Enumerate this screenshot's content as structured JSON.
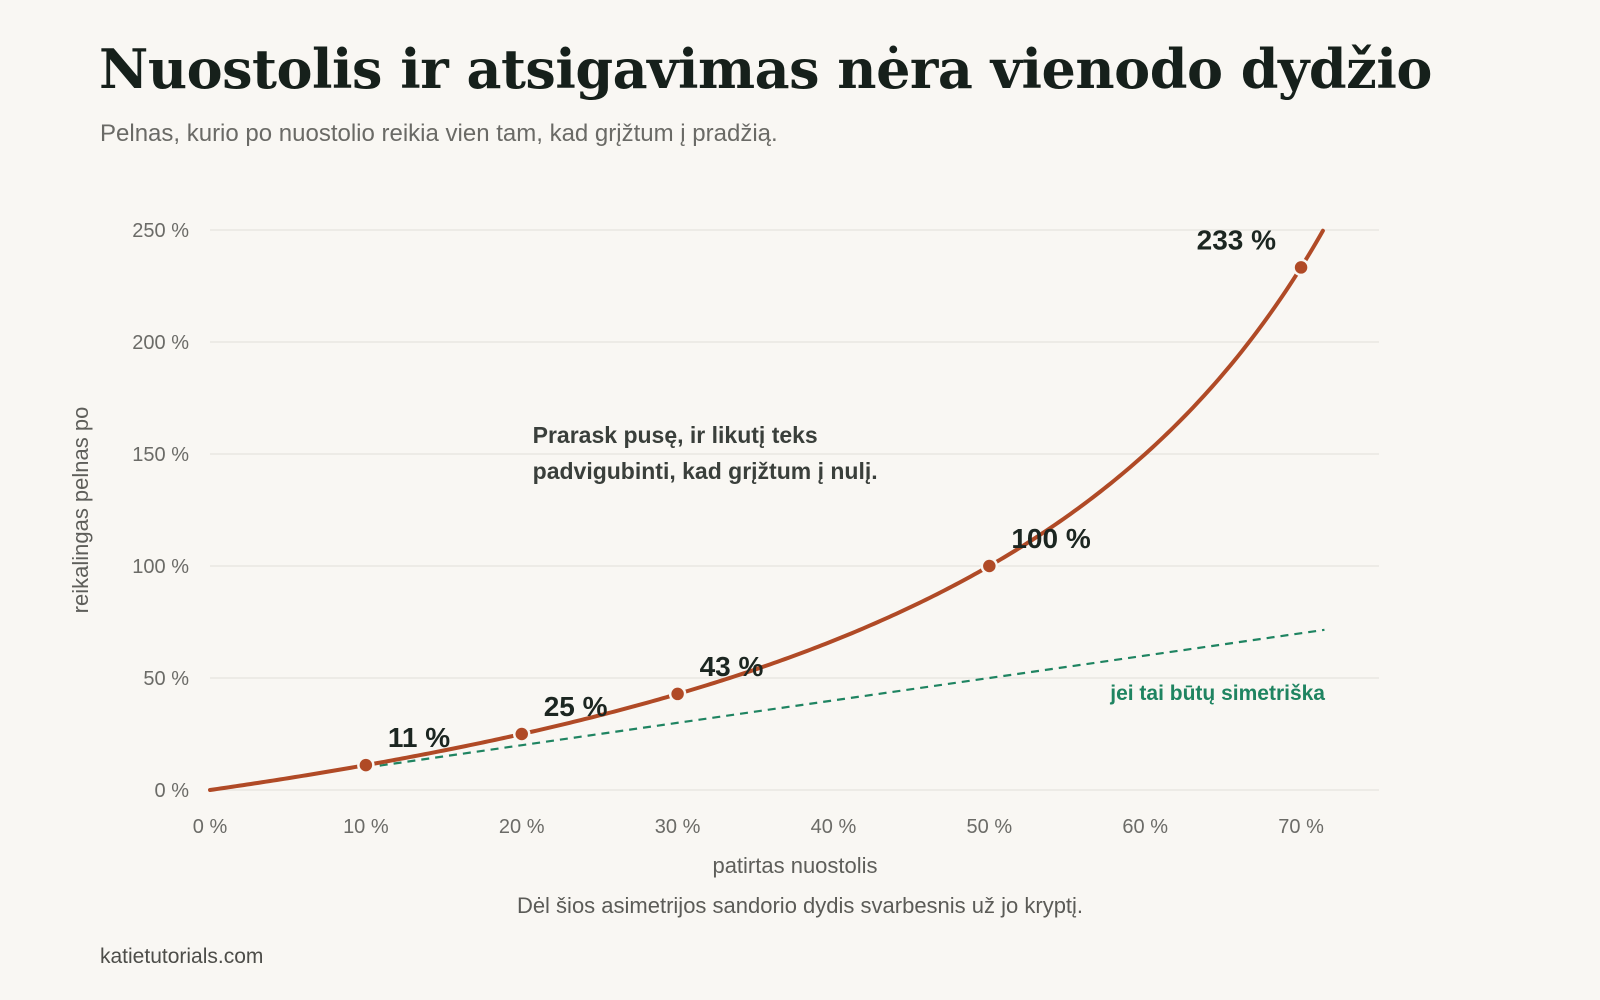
{
  "header": {
    "title": "Nuostolis ir atsigavimas nėra vienodo dydžio",
    "subtitle": "Pelnas, kurio po nuostolio reikia vien tam, kad grįžtum į pradžią."
  },
  "footer": {
    "caption": "Dėl šios asimetrijos sandorio dydis svarbesnis už jo kryptį.",
    "source": "katietutorials.com"
  },
  "colors": {
    "background": "#f9f7f3",
    "curve": "#b04a26",
    "reference_line": "#1f8461",
    "grid": "#e6e4df",
    "axis_text": "#6b6b67",
    "value_label": "#1c2621",
    "annotation_text": "#3a3f3b"
  },
  "chart_data": {
    "type": "line",
    "xlabel": "patirtas nuostolis",
    "ylabel": "reikalingas pelnas po",
    "xlim": [
      0,
      75
    ],
    "ylim": [
      0,
      250
    ],
    "x_ticks": [
      0,
      10,
      20,
      30,
      40,
      50,
      60,
      70
    ],
    "x_tick_labels": [
      "0 %",
      "10 %",
      "20 %",
      "30 %",
      "40 %",
      "50 %",
      "60 %",
      "70 %"
    ],
    "y_ticks": [
      0,
      50,
      100,
      150,
      200,
      250
    ],
    "y_tick_labels": [
      "0 %",
      "50 %",
      "100 %",
      "150 %",
      "200 %",
      "250 %"
    ],
    "grid": "horizontal",
    "series": [
      {
        "formula": "100*x/(100-x)",
        "x": [
          0,
          5,
          10,
          15,
          20,
          25,
          30,
          35,
          40,
          45,
          50,
          55,
          60,
          65,
          70,
          71.4
        ],
        "y": [
          0,
          5.3,
          11.1,
          17.6,
          25,
          33.3,
          42.9,
          53.8,
          66.7,
          81.8,
          100,
          122.2,
          150,
          185.7,
          233.3,
          250
        ],
        "style": "solid",
        "color": "#b04a26"
      },
      {
        "name": "jei tai būtų simetriška",
        "formula": "y = x",
        "x": [
          10,
          71.5
        ],
        "y": [
          10,
          71.5
        ],
        "style": "dashed",
        "color": "#1f8461"
      }
    ],
    "highlighted_points": [
      {
        "x": 10,
        "y": 11.1,
        "label": "11 %"
      },
      {
        "x": 20,
        "y": 25,
        "label": "25 %"
      },
      {
        "x": 30,
        "y": 42.9,
        "label": "43 %"
      },
      {
        "x": 50,
        "y": 100,
        "label": "100 %"
      },
      {
        "x": 70,
        "y": 233.3,
        "label": "233 %"
      }
    ],
    "annotation": {
      "lines": [
        "Prarask pusę, ir likutį teks",
        "padvigubinti, kad grįžtum į nulį."
      ],
      "x": 20.7,
      "y": 155
    }
  }
}
